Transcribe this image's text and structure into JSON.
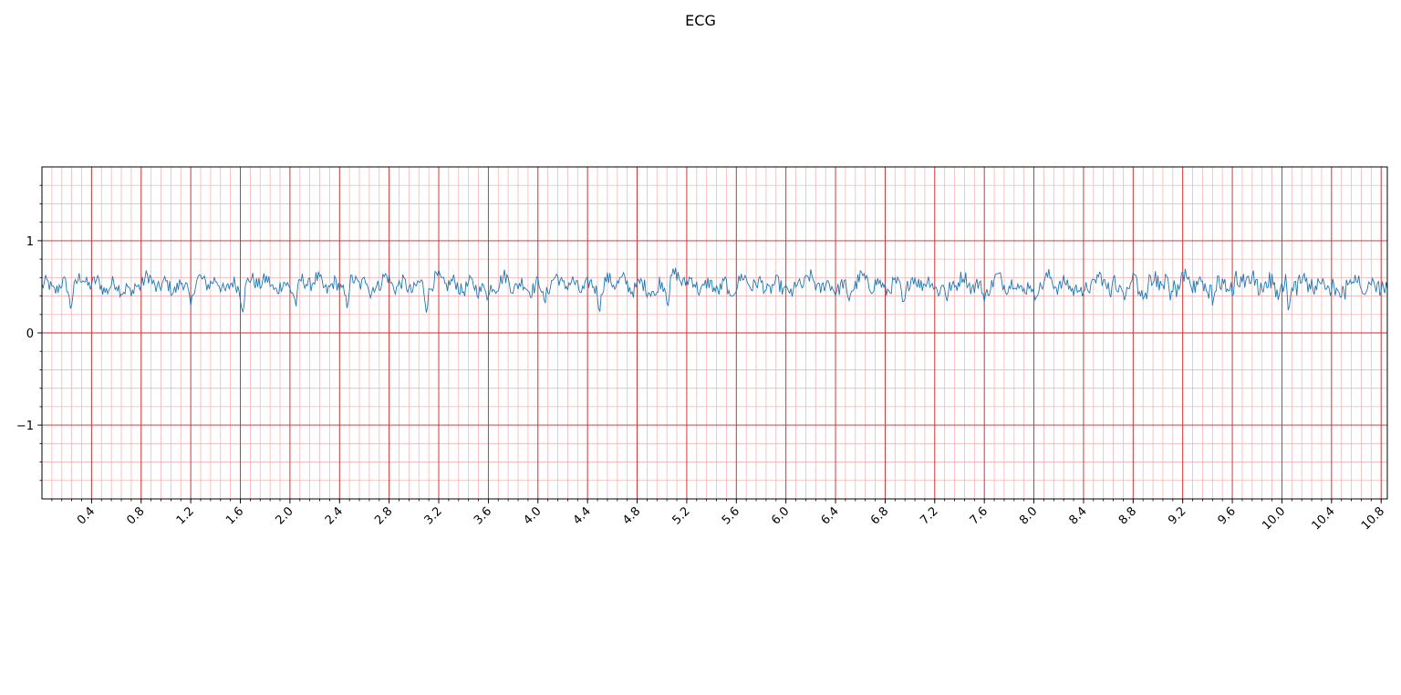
{
  "chart_data": {
    "type": "line",
    "title": "ECG",
    "xlabel": "",
    "ylabel": "",
    "xlim": [
      0,
      10.85
    ],
    "ylim": [
      -1.8,
      1.8
    ],
    "x_ticks": [
      "0.4",
      "0.8",
      "1.2",
      "1.6",
      "2.0",
      "2.4",
      "2.8",
      "3.2",
      "3.6",
      "4.0",
      "4.4",
      "4.8",
      "5.2",
      "5.6",
      "6.0",
      "6.4",
      "6.8",
      "7.2",
      "7.6",
      "8.0",
      "8.4",
      "8.8",
      "9.2",
      "9.6",
      "10.0",
      "10.4",
      "10.8"
    ],
    "y_ticks": [
      "1",
      "0",
      "−1"
    ],
    "grid": true,
    "colors": {
      "major_grid": "#d62728",
      "minor_grid": "#f4b6b6",
      "line": "#1f77b4"
    },
    "series": [
      {
        "sample_step": 0.01,
        "baseline": 0.5,
        "beat_times": [
          0.23,
          0.72,
          1.2,
          1.62,
          2.05,
          2.46,
          2.65,
          3.1,
          3.6,
          4.05,
          4.5,
          4.95,
          5.05,
          5.55,
          6.05,
          6.5,
          6.95,
          7.3,
          7.6,
          8.0,
          8.4,
          8.9,
          9.1,
          9.45,
          9.6,
          10.05,
          10.45,
          10.85
        ]
      }
    ]
  }
}
